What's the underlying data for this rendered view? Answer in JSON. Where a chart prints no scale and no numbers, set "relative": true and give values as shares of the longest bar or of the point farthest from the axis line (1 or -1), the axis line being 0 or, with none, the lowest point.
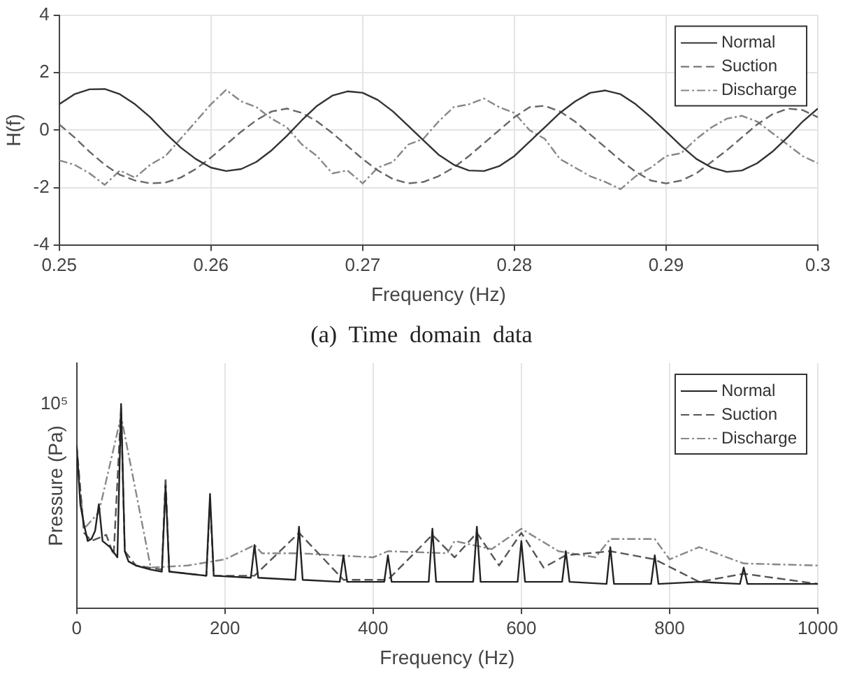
{
  "chart_data": [
    {
      "type": "line",
      "xlabel": "Frequency (Hz)",
      "ylabel": "H(f)",
      "annotations": [
        "(a)  Time  domain  data"
      ],
      "x": [
        0.25,
        0.251,
        0.252,
        0.253,
        0.254,
        0.255,
        0.256,
        0.257,
        0.258,
        0.259,
        0.26,
        0.261,
        0.262,
        0.263,
        0.264,
        0.265,
        0.266,
        0.267,
        0.268,
        0.269,
        0.27,
        0.271,
        0.272,
        0.273,
        0.274,
        0.275,
        0.276,
        0.277,
        0.278,
        0.279,
        0.28,
        0.281,
        0.282,
        0.283,
        0.284,
        0.285,
        0.286,
        0.287,
        0.288,
        0.289,
        0.29,
        0.291,
        0.292,
        0.293,
        0.294,
        0.295,
        0.296,
        0.297,
        0.298,
        0.299,
        0.3
      ],
      "series": [
        {
          "name": "Normal",
          "color": "#333333",
          "line_style": "solid",
          "values": [
            0.9,
            1.25,
            1.42,
            1.43,
            1.25,
            0.9,
            0.45,
            -0.1,
            -0.6,
            -1.0,
            -1.3,
            -1.42,
            -1.35,
            -1.1,
            -0.7,
            -0.2,
            0.35,
            0.85,
            1.2,
            1.35,
            1.3,
            1.05,
            0.65,
            0.15,
            -0.35,
            -0.85,
            -1.2,
            -1.4,
            -1.42,
            -1.25,
            -0.9,
            -0.4,
            0.1,
            0.6,
            1.0,
            1.3,
            1.38,
            1.25,
            0.9,
            0.45,
            -0.05,
            -0.55,
            -1.0,
            -1.3,
            -1.45,
            -1.4,
            -1.15,
            -0.75,
            -0.25,
            0.3,
            0.75
          ]
        },
        {
          "name": "Suction",
          "color": "#666666",
          "line_style": "dashed",
          "values": [
            0.2,
            -0.25,
            -0.75,
            -1.2,
            -1.55,
            -1.75,
            -1.85,
            -1.82,
            -1.65,
            -1.35,
            -0.95,
            -0.5,
            -0.05,
            0.35,
            0.65,
            0.75,
            0.6,
            0.3,
            -0.1,
            -0.55,
            -1.0,
            -1.4,
            -1.7,
            -1.85,
            -1.8,
            -1.6,
            -1.3,
            -0.9,
            -0.45,
            0.0,
            0.45,
            0.8,
            0.85,
            0.65,
            0.3,
            -0.15,
            -0.6,
            -1.05,
            -1.45,
            -1.75,
            -1.85,
            -1.75,
            -1.5,
            -1.1,
            -0.7,
            -0.25,
            0.2,
            0.55,
            0.75,
            0.7,
            0.45
          ]
        },
        {
          "name": "Discharge",
          "color": "#888888",
          "line_style": "dashdot",
          "values": [
            -1.05,
            -1.2,
            -1.5,
            -1.9,
            -1.4,
            -1.65,
            -1.2,
            -0.9,
            -0.3,
            0.3,
            0.9,
            1.4,
            1.0,
            0.8,
            0.4,
            0.1,
            -0.5,
            -0.9,
            -1.5,
            -1.4,
            -1.85,
            -1.3,
            -1.1,
            -0.5,
            -0.3,
            0.3,
            0.8,
            0.9,
            1.1,
            0.8,
            0.6,
            0.0,
            -0.3,
            -1.0,
            -1.3,
            -1.6,
            -1.8,
            -2.05,
            -1.6,
            -1.3,
            -0.9,
            -0.8,
            -0.3,
            0.1,
            0.4,
            0.5,
            0.3,
            -0.1,
            -0.5,
            -0.9,
            -1.15
          ]
        }
      ],
      "xlim": [
        0.25,
        0.3
      ],
      "xticks": [
        0.25,
        0.26,
        0.27,
        0.28,
        0.29,
        {
          "value": 0.3,
          "label": "0.3"
        }
      ],
      "ylim": [
        -4,
        4
      ],
      "yticks": [
        -4,
        -2,
        0,
        2,
        4
      ],
      "grid": true,
      "legend": "top right"
    },
    {
      "type": "line",
      "xlabel": "Frequency (Hz)",
      "ylabel": "Pressure (Pa)",
      "relative": true,
      "annotations": [
        "10⁵"
      ],
      "series": [
        {
          "name": "Normal",
          "color": "#222222",
          "line_style": "solid",
          "x": [
            0,
            5,
            10,
            15,
            20,
            25,
            30,
            35,
            45,
            55,
            60,
            65,
            70,
            80,
            100,
            115,
            120,
            125,
            150,
            175,
            180,
            185,
            235,
            240,
            245,
            295,
            300,
            305,
            355,
            360,
            365,
            415,
            420,
            425,
            475,
            480,
            485,
            535,
            540,
            545,
            595,
            600,
            605,
            655,
            660,
            665,
            715,
            720,
            725,
            775,
            780,
            785,
            840,
            895,
            900,
            905,
            1000
          ],
          "values": [
            0.8,
            0.51,
            0.41,
            0.33,
            0.34,
            0.38,
            0.51,
            0.33,
            0.3,
            0.25,
            1,
            0.28,
            0.23,
            0.21,
            0.19,
            0.18,
            0.6,
            0.18,
            0.17,
            0.16,
            0.56,
            0.16,
            0.15,
            0.31,
            0.15,
            0.14,
            0.4,
            0.14,
            0.13,
            0.26,
            0.13,
            0.13,
            0.26,
            0.13,
            0.13,
            0.39,
            0.13,
            0.13,
            0.4,
            0.13,
            0.13,
            0.33,
            0.13,
            0.13,
            0.28,
            0.13,
            0.12,
            0.3,
            0.12,
            0.12,
            0.26,
            0.12,
            0.13,
            0.12,
            0.2,
            0.12,
            0.12
          ]
        },
        {
          "name": "Suction",
          "color": "#555555",
          "line_style": "dashed",
          "x": [
            0,
            10,
            20,
            40,
            50,
            60,
            65,
            80,
            115,
            120,
            125,
            175,
            180,
            185,
            240,
            300,
            360,
            420,
            480,
            510,
            540,
            570,
            600,
            630,
            660,
            720,
            780,
            840,
            900,
            1000
          ],
          "values": [
            0.8,
            0.37,
            0.33,
            0.36,
            0.26,
            0.98,
            0.28,
            0.21,
            0.19,
            0.64,
            0.18,
            0.16,
            0.52,
            0.16,
            0.16,
            0.37,
            0.14,
            0.14,
            0.36,
            0.25,
            0.37,
            0.21,
            0.37,
            0.2,
            0.26,
            0.28,
            0.24,
            0.13,
            0.17,
            0.12
          ]
        },
        {
          "name": "Discharge",
          "color": "#888888",
          "line_style": "dashdot",
          "x": [
            0,
            10,
            30,
            60,
            100,
            150,
            200,
            240,
            250,
            300,
            400,
            420,
            500,
            510,
            560,
            600,
            650,
            700,
            720,
            780,
            800,
            840,
            900,
            1000
          ],
          "values": [
            0.77,
            0.39,
            0.47,
            0.94,
            0.2,
            0.21,
            0.24,
            0.31,
            0.27,
            0.27,
            0.25,
            0.28,
            0.27,
            0.33,
            0.29,
            0.39,
            0.28,
            0.25,
            0.34,
            0.34,
            0.24,
            0.3,
            0.22,
            0.21
          ]
        }
      ],
      "xlim": [
        0,
        1000
      ],
      "xticks": [
        0,
        200,
        400,
        600,
        800,
        1000
      ],
      "grid": "x",
      "legend": "top right"
    }
  ]
}
